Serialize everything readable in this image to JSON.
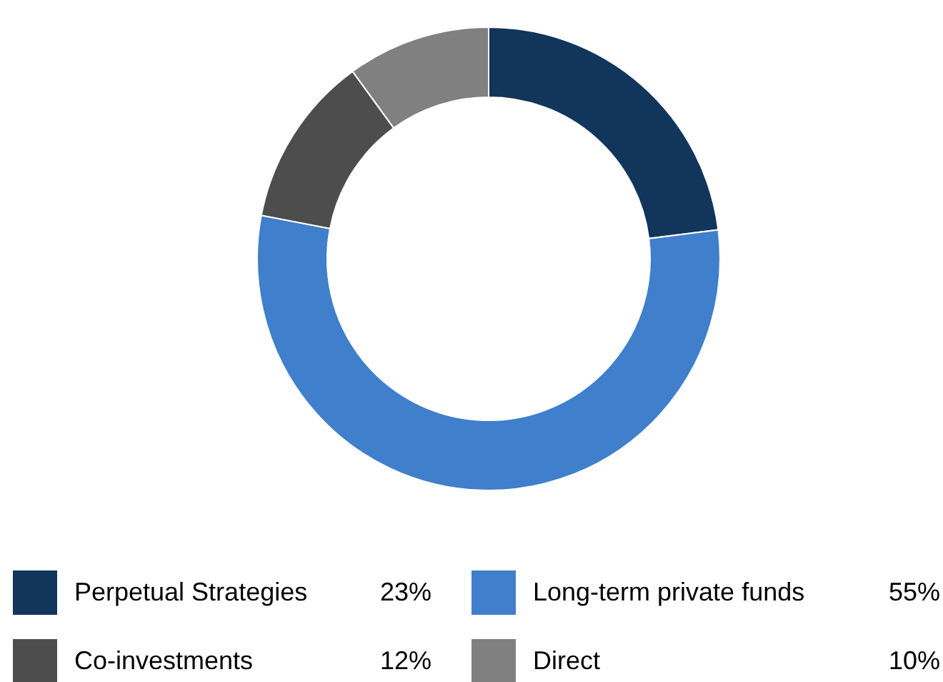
{
  "chart_data": {
    "type": "donut",
    "categories": [
      "Perpetual Strategies",
      "Long-term private funds",
      "Co-investments",
      "Direct"
    ],
    "values": [
      23,
      55,
      12,
      10
    ],
    "colors": [
      "#12355b",
      "#3f7fcc",
      "#4d4d4d",
      "#808080"
    ],
    "value_labels": [
      "23%",
      "55%",
      "12%",
      "10%"
    ],
    "legend": "bottom"
  }
}
